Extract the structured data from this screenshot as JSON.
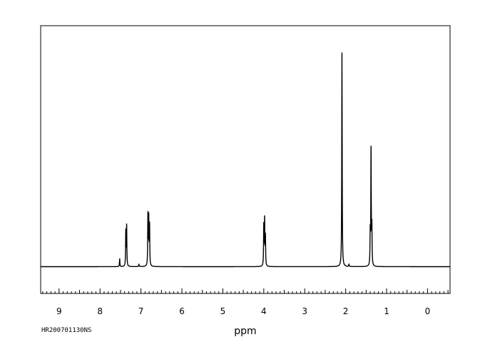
{
  "chart_data": {
    "type": "line",
    "xlabel": "ppm",
    "ylabel": "",
    "xlim": [
      9.45,
      -0.55
    ],
    "ylim": [
      0,
      1
    ],
    "x_reversed": true,
    "x_ticks": [
      9,
      8,
      7,
      6,
      5,
      4,
      3,
      2,
      1,
      0
    ],
    "x_ticks_labeled": [
      "9",
      "8",
      "7",
      "6",
      "5",
      "4",
      "3",
      "2",
      "1",
      "0"
    ],
    "grid": false,
    "legend": "none",
    "baseline": 0.1,
    "series": [
      {
        "peaks": [
          {
            "ppm": 7.52,
            "height": 0.13
          },
          {
            "ppm": 7.37,
            "height": 0.23
          },
          {
            "ppm": 7.35,
            "height": 0.25
          },
          {
            "ppm": 7.05,
            "height": 0.11
          },
          {
            "ppm": 6.83,
            "height": 0.29
          },
          {
            "ppm": 6.81,
            "height": 0.275
          },
          {
            "ppm": 6.79,
            "height": 0.25
          },
          {
            "ppm": 4.0,
            "height": 0.25
          },
          {
            "ppm": 3.98,
            "height": 0.27
          },
          {
            "ppm": 3.96,
            "height": 0.21
          },
          {
            "ppm": 2.09,
            "height": 0.9
          },
          {
            "ppm": 1.92,
            "height": 0.11
          },
          {
            "ppm": 1.4,
            "height": 0.22
          },
          {
            "ppm": 1.38,
            "height": 0.53
          },
          {
            "ppm": 1.36,
            "height": 0.24
          }
        ]
      }
    ],
    "line_color": "#000000"
  },
  "footer": {
    "spectrum_id": "HR200701130NS"
  }
}
